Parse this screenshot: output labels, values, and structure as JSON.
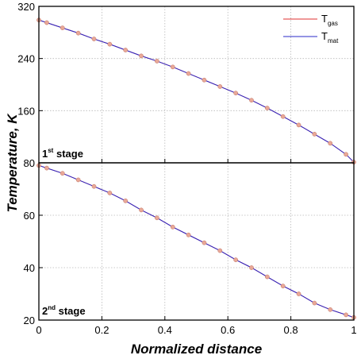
{
  "chart_data": {
    "type": "line",
    "xlabel": "Normalized distance",
    "ylabel": "Temperature, K",
    "legend": {
      "position": "top-right",
      "entries": [
        {
          "base": "T",
          "sub": "gas",
          "color": "#e03030"
        },
        {
          "base": "T",
          "sub": "mat",
          "color": "#2828c8"
        }
      ]
    },
    "x_ticks": [
      "0",
      "0.2",
      "0.4",
      "0.6",
      "0.8",
      "1"
    ],
    "xlim": [
      0,
      1
    ],
    "grid": true,
    "marker_color": "#e8a898",
    "panels": [
      {
        "label_base": "1",
        "label_sup": "st",
        "label_rest": " stage",
        "ylim": [
          80,
          320
        ],
        "y_ticks": [
          "80",
          "160",
          "240",
          "320"
        ],
        "series": [
          {
            "name": "T_gas",
            "x": [
              0,
              0.025,
              0.075,
              0.125,
              0.175,
              0.225,
              0.275,
              0.325,
              0.375,
              0.425,
              0.475,
              0.525,
              0.575,
              0.625,
              0.675,
              0.725,
              0.775,
              0.825,
              0.875,
              0.925,
              0.975,
              1
            ],
            "y": [
              299,
              295,
              287,
              279,
              270,
              262,
              253,
              244,
              236,
              227,
              217,
              207,
              197,
              187,
              176,
              164,
              151,
              138,
              124,
              110,
              93,
              81
            ]
          },
          {
            "name": "T_mat",
            "x": [
              0,
              0.025,
              0.075,
              0.125,
              0.175,
              0.225,
              0.275,
              0.325,
              0.375,
              0.425,
              0.475,
              0.525,
              0.575,
              0.625,
              0.675,
              0.725,
              0.775,
              0.825,
              0.875,
              0.925,
              0.975,
              1
            ],
            "y": [
              299,
              295,
              287,
              279,
              270,
              262,
              253,
              244,
              236,
              227,
              217,
              207,
              197,
              187,
              176,
              164,
              151,
              138,
              124,
              110,
              93,
              81
            ]
          }
        ]
      },
      {
        "label_base": "2",
        "label_sup": "nd",
        "label_rest": " stage",
        "ylim": [
          20,
          80
        ],
        "y_ticks": [
          "20",
          "40",
          "60"
        ],
        "series": [
          {
            "name": "T_gas",
            "x": [
              0,
              0.025,
              0.075,
              0.125,
              0.175,
              0.225,
              0.275,
              0.325,
              0.375,
              0.425,
              0.475,
              0.525,
              0.575,
              0.625,
              0.675,
              0.725,
              0.775,
              0.825,
              0.875,
              0.925,
              0.975,
              1
            ],
            "y": [
              79,
              78,
              76,
              73.5,
              71,
              68.5,
              65.5,
              62,
              59,
              55.5,
              52.5,
              49.5,
              46.5,
              43,
              40,
              36.5,
              33,
              30,
              26.5,
              24,
              22,
              21
            ]
          },
          {
            "name": "T_mat",
            "x": [
              0,
              0.025,
              0.075,
              0.125,
              0.175,
              0.225,
              0.275,
              0.325,
              0.375,
              0.425,
              0.475,
              0.525,
              0.575,
              0.625,
              0.675,
              0.725,
              0.775,
              0.825,
              0.875,
              0.925,
              0.975,
              1
            ],
            "y": [
              79,
              78,
              76,
              73.5,
              71,
              68.5,
              65.5,
              62,
              59,
              55.5,
              52.5,
              49.5,
              46.5,
              43,
              40,
              36.5,
              33,
              30,
              26.5,
              24,
              22,
              21
            ]
          }
        ]
      }
    ]
  }
}
